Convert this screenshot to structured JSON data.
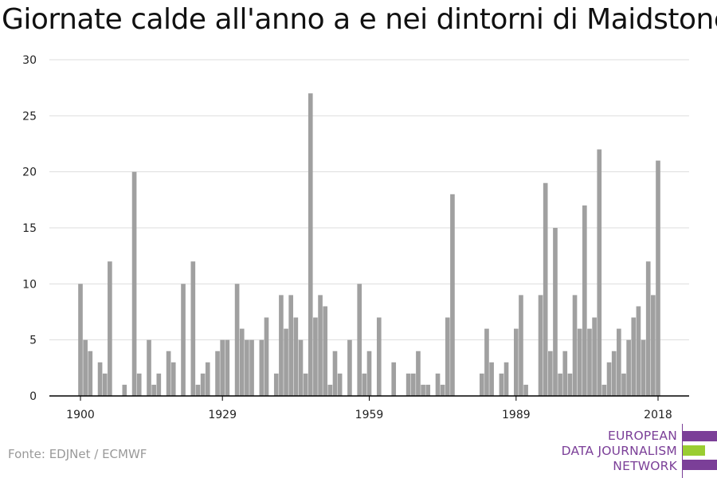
{
  "title": "Giornate calde all'anno a e nei dintorni di Maidstone",
  "source": "Fonte: EDJNet / ECMWF",
  "logo": {
    "line1": "EUROPEAN",
    "line2": "DATA JOURNALISM",
    "line3": "NETWORK",
    "colors": {
      "purple": "#7b3f98",
      "green": "#9acd32"
    }
  },
  "colors": {
    "bar": "#a0a0a0",
    "grid": "#dddddd",
    "axis": "#000000"
  },
  "chart_data": {
    "type": "bar",
    "title": "Giornate calde all'anno a e nei dintorni di Maidstone",
    "xlabel": "",
    "ylabel": "",
    "ylim": [
      0,
      30
    ],
    "yticks": [
      0,
      5,
      10,
      15,
      20,
      25,
      30
    ],
    "xticks": [
      1900,
      1929,
      1959,
      1989,
      2018
    ],
    "xlim": [
      1894,
      2024
    ],
    "grid": true,
    "x": [
      1900,
      1901,
      1902,
      1903,
      1904,
      1905,
      1906,
      1907,
      1908,
      1909,
      1910,
      1911,
      1912,
      1913,
      1914,
      1915,
      1916,
      1917,
      1918,
      1919,
      1920,
      1921,
      1922,
      1923,
      1924,
      1925,
      1926,
      1927,
      1928,
      1929,
      1930,
      1931,
      1932,
      1933,
      1934,
      1935,
      1936,
      1937,
      1938,
      1939,
      1940,
      1941,
      1942,
      1943,
      1944,
      1945,
      1946,
      1947,
      1948,
      1949,
      1950,
      1951,
      1952,
      1953,
      1954,
      1955,
      1956,
      1957,
      1958,
      1959,
      1960,
      1961,
      1962,
      1963,
      1964,
      1965,
      1966,
      1967,
      1968,
      1969,
      1970,
      1971,
      1972,
      1973,
      1974,
      1975,
      1976,
      1977,
      1978,
      1979,
      1980,
      1981,
      1982,
      1983,
      1984,
      1985,
      1986,
      1987,
      1988,
      1989,
      1990,
      1991,
      1992,
      1993,
      1994,
      1995,
      1996,
      1997,
      1998,
      1999,
      2000,
      2001,
      2002,
      2003,
      2004,
      2005,
      2006,
      2007,
      2008,
      2009,
      2010,
      2011,
      2012,
      2013,
      2014,
      2015,
      2016,
      2017,
      2018
    ],
    "values": [
      10,
      5,
      4,
      0,
      3,
      2,
      12,
      0,
      0,
      1,
      0,
      20,
      2,
      0,
      5,
      1,
      2,
      0,
      4,
      3,
      0,
      10,
      0,
      12,
      1,
      2,
      3,
      0,
      4,
      5,
      5,
      0,
      10,
      6,
      5,
      5,
      0,
      5,
      7,
      0,
      2,
      9,
      6,
      9,
      7,
      5,
      2,
      27,
      7,
      9,
      8,
      1,
      4,
      2,
      0,
      5,
      0,
      10,
      2,
      4,
      0,
      7,
      0,
      0,
      3,
      0,
      0,
      2,
      2,
      4,
      1,
      1,
      0,
      2,
      1,
      7,
      18,
      0,
      0,
      0,
      0,
      0,
      2,
      6,
      3,
      0,
      2,
      3,
      0,
      6,
      9,
      1,
      0,
      0,
      9,
      19,
      4,
      15,
      2,
      4,
      2,
      9,
      6,
      17,
      6,
      7,
      22,
      1,
      3,
      4,
      6,
      2,
      5,
      7,
      8,
      5,
      12,
      9,
      21
    ]
  }
}
